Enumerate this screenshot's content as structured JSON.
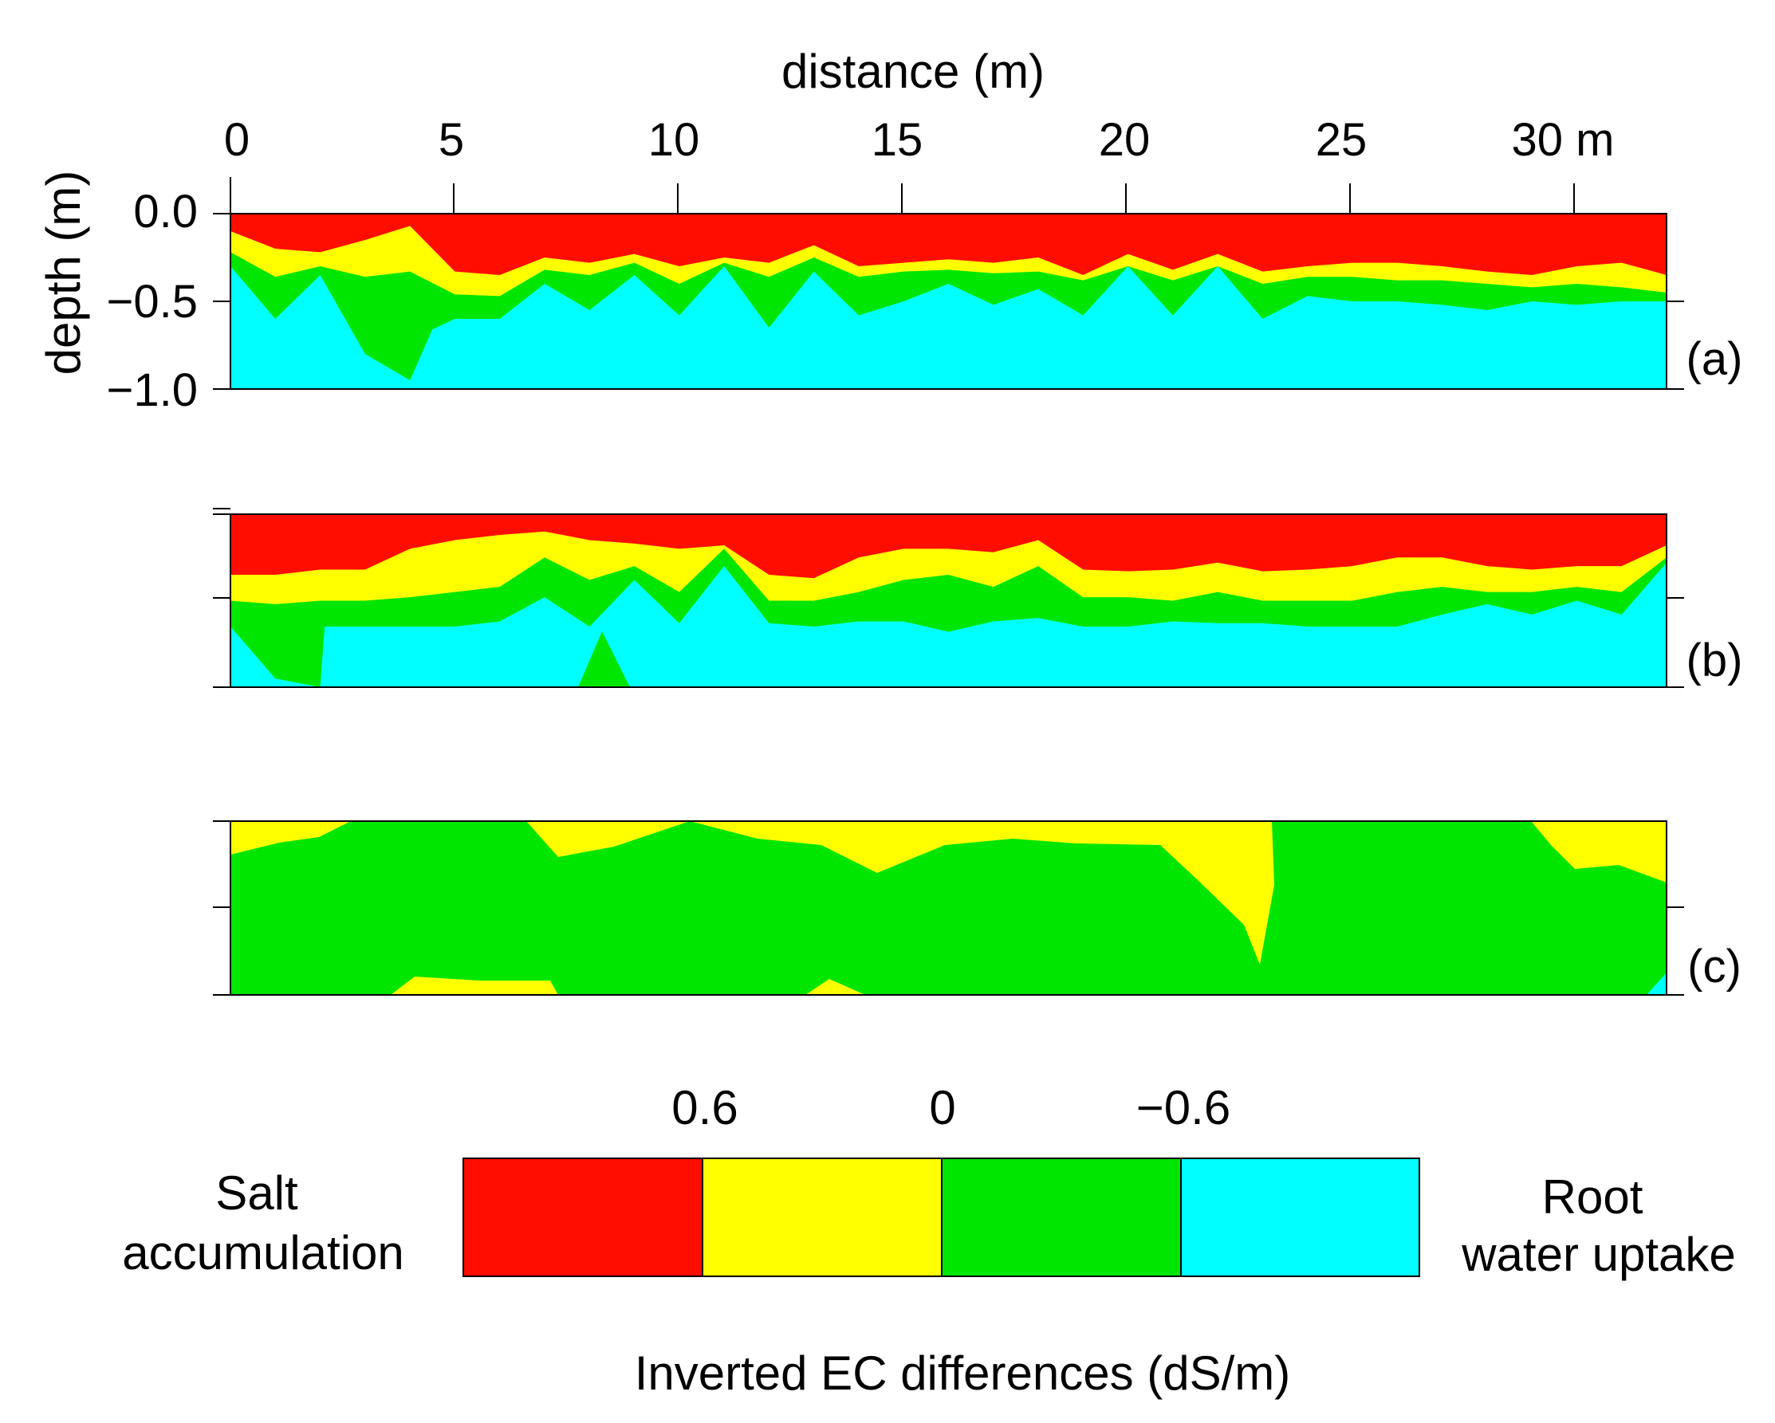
{
  "chart_data": {
    "type": "heatmap",
    "subtype": "filled-contour",
    "title": "",
    "xlabel": "distance (m)",
    "ylabel": "depth (m)",
    "xlim": [
      0,
      32
    ],
    "ylim": [
      -1.0,
      0.0
    ],
    "x_ticks": [
      0,
      5,
      10,
      15,
      20,
      25,
      30
    ],
    "x_tick_labels": [
      "0",
      "5",
      "10",
      "15",
      "20",
      "25",
      "30 m"
    ],
    "y_ticks": [
      0.0,
      -0.5,
      -1.0
    ],
    "y_tick_labels": [
      "0.0",
      "−0.5",
      "−1.0"
    ],
    "legend": {
      "title": "Inverted EC differences (dS/m)",
      "left_label_line1": "Salt",
      "left_label_line2": "accumulation",
      "right_label_line1": "Root",
      "right_label_line2": "water uptake",
      "boundaries": [
        "0.6",
        "0",
        "−0.6"
      ],
      "boundary_values": [
        0.6,
        0,
        -0.6
      ],
      "classes": [
        {
          "name": "> 0.6",
          "color": "#ff0d00"
        },
        {
          "name": "0 to 0.6",
          "color": "#ffff00"
        },
        {
          "name": "−0.6 to 0",
          "color": "#00e600"
        },
        {
          "name": "< −0.6",
          "color": "#00ffff"
        }
      ]
    },
    "panels": [
      {
        "label": "(a)",
        "fill": "#00ffff",
        "boundaries": [
          {
            "fill_above": "#ff0d00",
            "points": [
              [
                0,
                -0.1
              ],
              [
                1,
                -0.2
              ],
              [
                2,
                -0.22
              ],
              [
                3,
                -0.15
              ],
              [
                4,
                -0.07
              ],
              [
                5,
                -0.33
              ],
              [
                6,
                -0.35
              ],
              [
                7,
                -0.25
              ],
              [
                8,
                -0.28
              ],
              [
                9,
                -0.23
              ],
              [
                10,
                -0.3
              ],
              [
                11,
                -0.25
              ],
              [
                12,
                -0.28
              ],
              [
                13,
                -0.18
              ],
              [
                14,
                -0.3
              ],
              [
                15,
                -0.28
              ],
              [
                16,
                -0.26
              ],
              [
                17,
                -0.28
              ],
              [
                18,
                -0.25
              ],
              [
                19,
                -0.35
              ],
              [
                20,
                -0.23
              ],
              [
                21,
                -0.32
              ],
              [
                22,
                -0.23
              ],
              [
                23,
                -0.33
              ],
              [
                24,
                -0.3
              ],
              [
                25,
                -0.28
              ],
              [
                26,
                -0.28
              ],
              [
                27,
                -0.3
              ],
              [
                28,
                -0.33
              ],
              [
                29,
                -0.35
              ],
              [
                30,
                -0.3
              ],
              [
                31,
                -0.28
              ],
              [
                32,
                -0.35
              ]
            ]
          },
          {
            "fill_above": "#ffff00",
            "points": [
              [
                0,
                -0.22
              ],
              [
                1,
                -0.36
              ],
              [
                2,
                -0.3
              ],
              [
                3,
                -0.36
              ],
              [
                4,
                -0.33
              ],
              [
                5,
                -0.46
              ],
              [
                6,
                -0.47
              ],
              [
                7,
                -0.32
              ],
              [
                8,
                -0.35
              ],
              [
                9,
                -0.28
              ],
              [
                10,
                -0.4
              ],
              [
                11,
                -0.28
              ],
              [
                12,
                -0.36
              ],
              [
                13,
                -0.25
              ],
              [
                14,
                -0.36
              ],
              [
                15,
                -0.33
              ],
              [
                16,
                -0.32
              ],
              [
                17,
                -0.34
              ],
              [
                18,
                -0.33
              ],
              [
                19,
                -0.38
              ],
              [
                20,
                -0.3
              ],
              [
                21,
                -0.38
              ],
              [
                22,
                -0.3
              ],
              [
                23,
                -0.4
              ],
              [
                24,
                -0.36
              ],
              [
                25,
                -0.36
              ],
              [
                26,
                -0.38
              ],
              [
                27,
                -0.38
              ],
              [
                28,
                -0.4
              ],
              [
                29,
                -0.42
              ],
              [
                30,
                -0.4
              ],
              [
                31,
                -0.42
              ],
              [
                32,
                -0.45
              ]
            ]
          },
          {
            "fill_above": "#00e600",
            "points": [
              [
                0,
                -0.3
              ],
              [
                1,
                -0.6
              ],
              [
                2,
                -0.35
              ],
              [
                3,
                -0.8
              ],
              [
                4,
                -0.95
              ],
              [
                4.5,
                -0.66
              ],
              [
                5,
                -0.6
              ],
              [
                6,
                -0.6
              ],
              [
                7,
                -0.4
              ],
              [
                8,
                -0.55
              ],
              [
                9,
                -0.35
              ],
              [
                10,
                -0.58
              ],
              [
                11,
                -0.3
              ],
              [
                12,
                -0.65
              ],
              [
                13,
                -0.33
              ],
              [
                14,
                -0.58
              ],
              [
                15,
                -0.5
              ],
              [
                16,
                -0.4
              ],
              [
                17,
                -0.52
              ],
              [
                18,
                -0.43
              ],
              [
                19,
                -0.58
              ],
              [
                20,
                -0.3
              ],
              [
                21,
                -0.58
              ],
              [
                22,
                -0.3
              ],
              [
                23,
                -0.6
              ],
              [
                24,
                -0.47
              ],
              [
                25,
                -0.5
              ],
              [
                26,
                -0.5
              ],
              [
                27,
                -0.52
              ],
              [
                28,
                -0.55
              ],
              [
                29,
                -0.5
              ],
              [
                30,
                -0.52
              ],
              [
                31,
                -0.5
              ],
              [
                32,
                -0.5
              ]
            ]
          }
        ]
      },
      {
        "label": "(b)",
        "fill": "#00ffff",
        "boundaries": [
          {
            "fill_above": "#ff0d00",
            "points": [
              [
                0,
                -0.35
              ],
              [
                1,
                -0.35
              ],
              [
                2,
                -0.32
              ],
              [
                3,
                -0.32
              ],
              [
                4,
                -0.2
              ],
              [
                5,
                -0.15
              ],
              [
                6,
                -0.12
              ],
              [
                7,
                -0.1
              ],
              [
                8,
                -0.15
              ],
              [
                9,
                -0.17
              ],
              [
                10,
                -0.2
              ],
              [
                11,
                -0.18
              ],
              [
                12,
                -0.35
              ],
              [
                13,
                -0.37
              ],
              [
                14,
                -0.25
              ],
              [
                15,
                -0.2
              ],
              [
                16,
                -0.2
              ],
              [
                17,
                -0.22
              ],
              [
                18,
                -0.15
              ],
              [
                19,
                -0.32
              ],
              [
                20,
                -0.33
              ],
              [
                21,
                -0.32
              ],
              [
                22,
                -0.28
              ],
              [
                23,
                -0.33
              ],
              [
                24,
                -0.32
              ],
              [
                25,
                -0.3
              ],
              [
                26,
                -0.25
              ],
              [
                27,
                -0.25
              ],
              [
                28,
                -0.3
              ],
              [
                29,
                -0.32
              ],
              [
                30,
                -0.3
              ],
              [
                31,
                -0.3
              ],
              [
                32,
                -0.18
              ]
            ]
          },
          {
            "fill_above": "#ffff00",
            "points": [
              [
                0,
                -0.5
              ],
              [
                1,
                -0.52
              ],
              [
                2,
                -0.5
              ],
              [
                3,
                -0.5
              ],
              [
                4,
                -0.48
              ],
              [
                5,
                -0.45
              ],
              [
                6,
                -0.42
              ],
              [
                7,
                -0.25
              ],
              [
                8,
                -0.38
              ],
              [
                9,
                -0.3
              ],
              [
                10,
                -0.45
              ],
              [
                11,
                -0.2
              ],
              [
                12,
                -0.5
              ],
              [
                13,
                -0.5
              ],
              [
                14,
                -0.45
              ],
              [
                15,
                -0.38
              ],
              [
                16,
                -0.35
              ],
              [
                17,
                -0.42
              ],
              [
                18,
                -0.3
              ],
              [
                19,
                -0.48
              ],
              [
                20,
                -0.48
              ],
              [
                21,
                -0.5
              ],
              [
                22,
                -0.45
              ],
              [
                23,
                -0.5
              ],
              [
                24,
                -0.5
              ],
              [
                25,
                -0.5
              ],
              [
                26,
                -0.45
              ],
              [
                27,
                -0.42
              ],
              [
                28,
                -0.45
              ],
              [
                29,
                -0.45
              ],
              [
                30,
                -0.42
              ],
              [
                31,
                -0.45
              ],
              [
                32,
                -0.25
              ]
            ]
          },
          {
            "fill_above": "#00e600",
            "points": [
              [
                0,
                -0.65
              ],
              [
                1,
                -0.95
              ],
              [
                2,
                -1.0
              ],
              [
                2.1,
                -0.65
              ],
              [
                3,
                -0.65
              ],
              [
                4,
                -0.65
              ],
              [
                5,
                -0.65
              ],
              [
                6,
                -0.62
              ],
              [
                7,
                -0.48
              ],
              [
                8,
                -0.65
              ],
              [
                9,
                -0.38
              ],
              [
                10,
                -0.63
              ],
              [
                11,
                -0.3
              ],
              [
                12,
                -0.63
              ],
              [
                13,
                -0.65
              ],
              [
                14,
                -0.62
              ],
              [
                15,
                -0.62
              ],
              [
                16,
                -0.68
              ],
              [
                17,
                -0.62
              ],
              [
                18,
                -0.6
              ],
              [
                19,
                -0.65
              ],
              [
                20,
                -0.65
              ],
              [
                21,
                -0.62
              ],
              [
                22,
                -0.63
              ],
              [
                23,
                -0.63
              ],
              [
                24,
                -0.65
              ],
              [
                25,
                -0.65
              ],
              [
                26,
                -0.65
              ],
              [
                27,
                -0.58
              ],
              [
                28,
                -0.52
              ],
              [
                29,
                -0.58
              ],
              [
                30,
                -0.5
              ],
              [
                31,
                -0.58
              ],
              [
                32,
                -0.28
              ]
            ]
          }
        ]
      },
      {
        "label": "(c)",
        "fill": "#00e600"
      }
    ]
  }
}
